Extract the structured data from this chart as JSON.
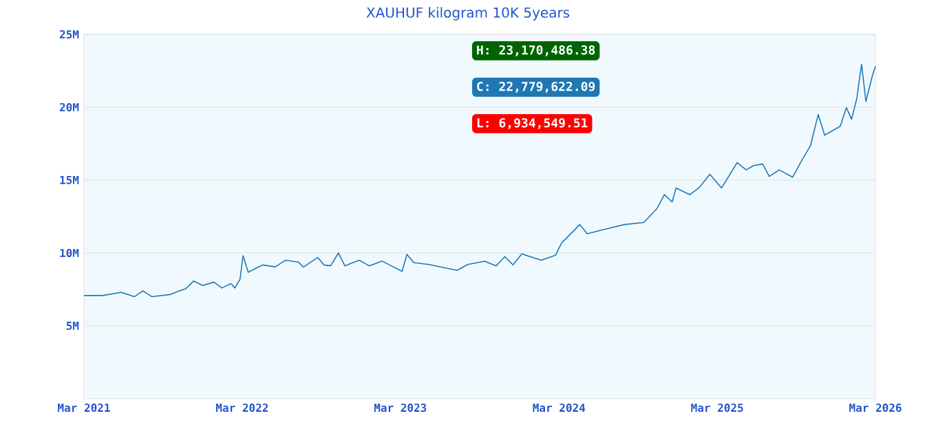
{
  "chart_data": {
    "type": "line",
    "title": "XAUHUF kilogram 10K 5years",
    "x": [
      "2021-03-01",
      "2021-04-12",
      "2021-05-26",
      "2021-06-25",
      "2021-07-15",
      "2021-08-05",
      "2021-09-16",
      "2021-10-07",
      "2021-10-22",
      "2021-11-09",
      "2021-11-30",
      "2021-12-26",
      "2022-01-13",
      "2022-02-03",
      "2022-02-12",
      "2022-02-24",
      "2022-03-03",
      "2022-03-15",
      "2022-04-02",
      "2022-04-17",
      "2022-05-16",
      "2022-06-09",
      "2022-07-09",
      "2022-07-20",
      "2022-08-22",
      "2022-09-06",
      "2022-09-21",
      "2022-10-09",
      "2022-10-24",
      "2022-11-26",
      "2022-12-19",
      "2023-01-18",
      "2023-02-08",
      "2023-03-05",
      "2023-03-16",
      "2023-04-01",
      "2023-05-06",
      "2023-07-10",
      "2023-08-03",
      "2023-09-11",
      "2023-10-08",
      "2023-10-28",
      "2023-11-16",
      "2023-12-06",
      "2024-01-20",
      "2024-02-22",
      "2024-03-07",
      "2024-04-18",
      "2024-05-05",
      "2024-06-16",
      "2024-07-30",
      "2024-09-13",
      "2024-10-13",
      "2024-10-30",
      "2024-11-17",
      "2024-11-26",
      "2024-12-28",
      "2025-01-19",
      "2025-02-12",
      "2025-03-11",
      "2025-04-16",
      "2025-05-07",
      "2025-05-24",
      "2025-06-14",
      "2025-06-29",
      "2025-07-22",
      "2025-08-22",
      "2025-09-12",
      "2025-10-02",
      "2025-10-20",
      "2025-11-04",
      "2025-12-10",
      "2025-12-24",
      "2026-01-05",
      "2026-01-17",
      "2026-01-28",
      "2026-02-07",
      "2026-02-22",
      "2026-03-01"
    ],
    "series": [
      {
        "color": "#1f77b4",
        "values": [
          7080000,
          7080000,
          7300000,
          7000000,
          7400000,
          7000000,
          7150000,
          7400000,
          7550000,
          8080000,
          7770000,
          8000000,
          7600000,
          7900000,
          7600000,
          8200000,
          9810000,
          8680000,
          8960000,
          9180000,
          9050000,
          9500000,
          9370000,
          9030000,
          9690000,
          9180000,
          9120000,
          10000000,
          9120000,
          9500000,
          9120000,
          9440000,
          9120000,
          8740000,
          9900000,
          9340000,
          9210000,
          8810000,
          9210000,
          9430000,
          9120000,
          9750000,
          9180000,
          9940000,
          9500000,
          9850000,
          10690000,
          11950000,
          11320000,
          11640000,
          11950000,
          12100000,
          13050000,
          14000000,
          13500000,
          14460000,
          14000000,
          14500000,
          15400000,
          14460000,
          16200000,
          15700000,
          16000000,
          16100000,
          15250000,
          15700000,
          15200000,
          16350000,
          17360000,
          19500000,
          18080000,
          18700000,
          19970000,
          19180000,
          20600000,
          22950000,
          20400000,
          22170000,
          22800000
        ]
      }
    ],
    "xlim": [
      "2021-03-01",
      "2026-03-01"
    ],
    "xticks": [
      {
        "value": "2021-03-01",
        "label": "Mar 2021"
      },
      {
        "value": "2022-03-01",
        "label": "Mar 2022"
      },
      {
        "value": "2023-03-01",
        "label": "Mar 2023"
      },
      {
        "value": "2024-03-01",
        "label": "Mar 2024"
      },
      {
        "value": "2025-03-01",
        "label": "Mar 2025"
      },
      {
        "value": "2026-03-01",
        "label": "Mar 2026"
      }
    ],
    "ylim": [
      0,
      25000000
    ],
    "yticks": [
      {
        "value": 5000000,
        "label": "5M"
      },
      {
        "value": 10000000,
        "label": "10M"
      },
      {
        "value": 15000000,
        "label": "15M"
      },
      {
        "value": 20000000,
        "label": "20M"
      },
      {
        "value": 25000000,
        "label": "25M"
      }
    ],
    "grid": "y",
    "annotations": [
      "H: 23,170,486.38",
      "C: 22,779,622.09",
      "L: 6,934,549.51"
    ]
  }
}
